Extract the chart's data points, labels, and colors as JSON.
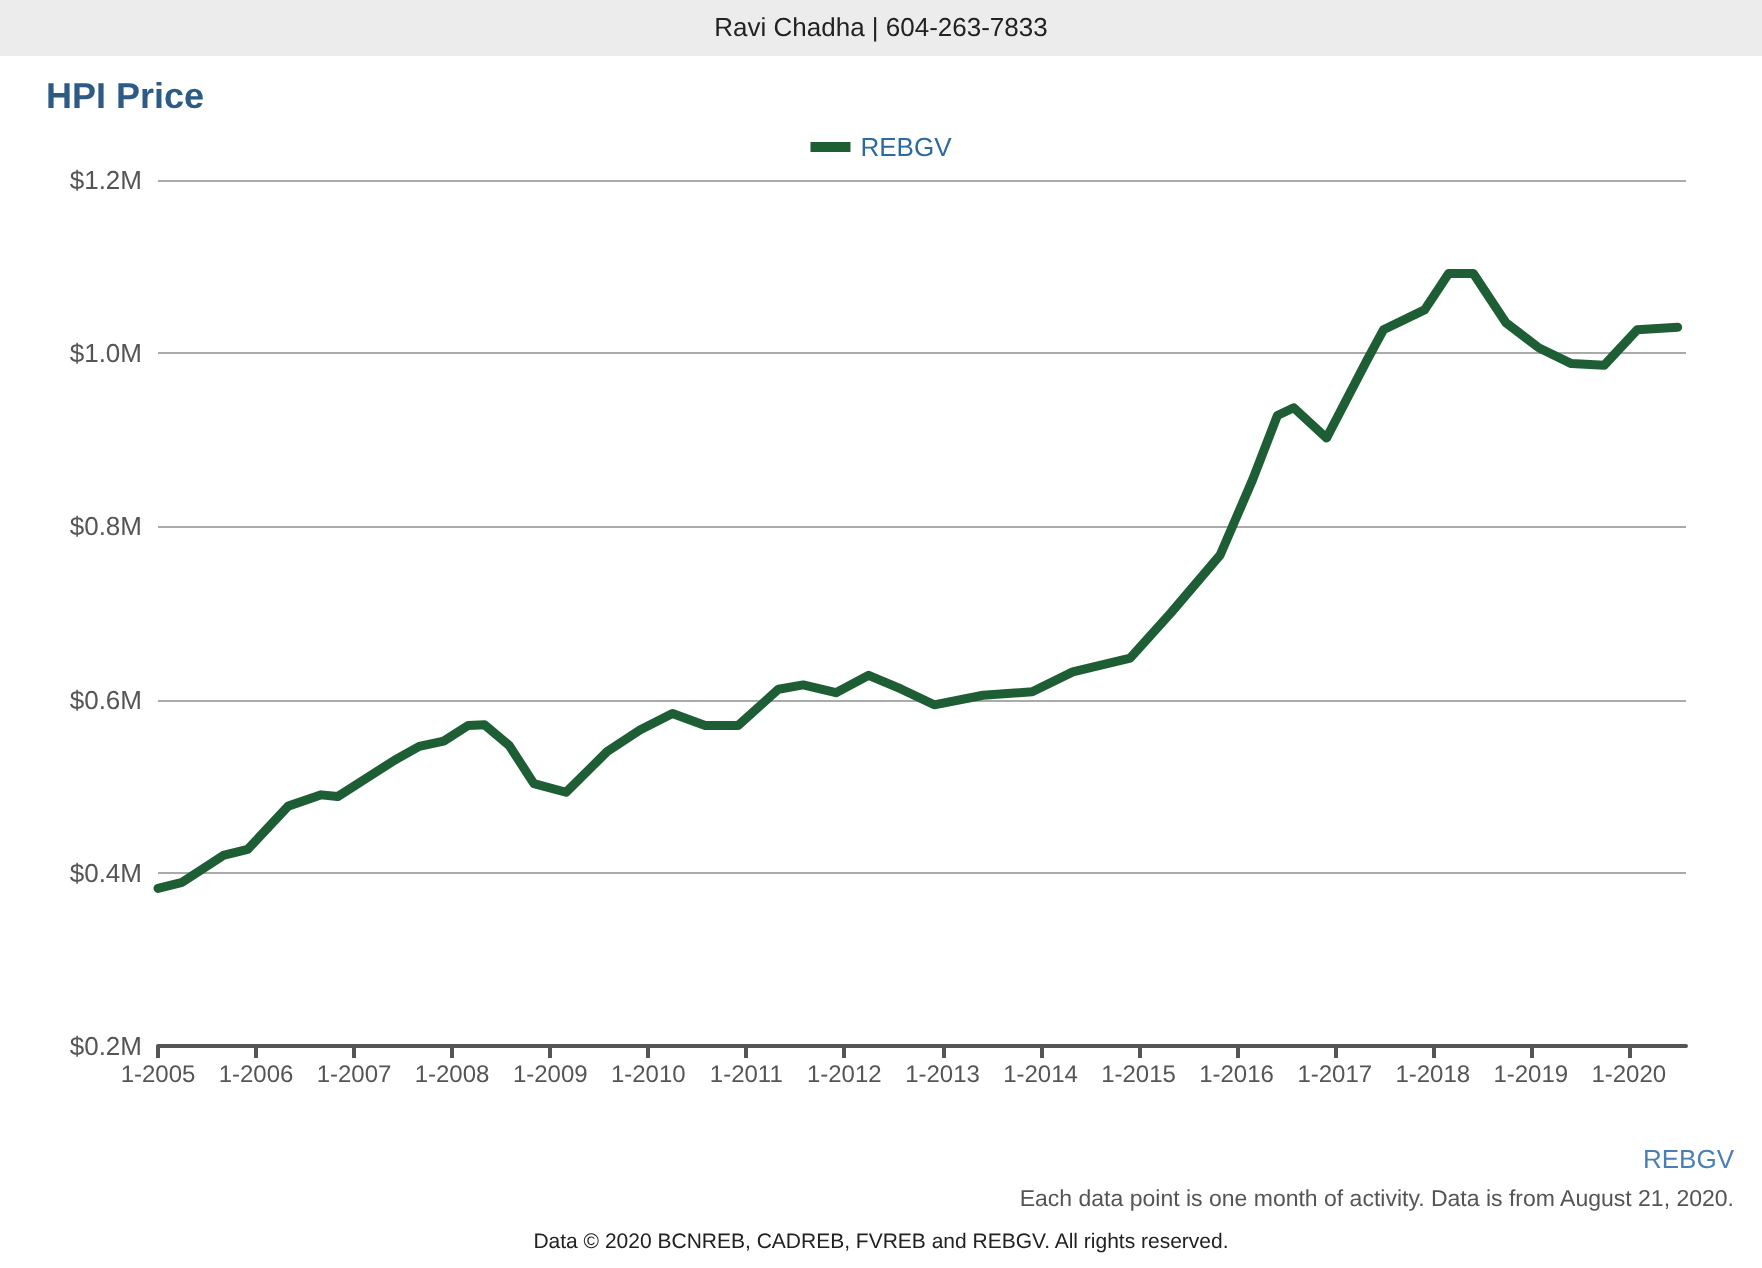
{
  "chart_data": {
    "type": "line",
    "title": "HPI Price",
    "annotations": [
      "Ravi Chadha | 604-263-7833",
      "REBGV",
      "Each data point is one month of activity. Data is from August 21, 2020.",
      "Data © 2020 BCNREB, CADREB, FVREB and REBGV. All rights reserved."
    ],
    "x": [
      "2005-01",
      "2005-04",
      "2005-09",
      "2005-12",
      "2006-05",
      "2006-09",
      "2006-11",
      "2007-06",
      "2007-09",
      "2007-12",
      "2008-03",
      "2008-05",
      "2008-08",
      "2008-11",
      "2009-03",
      "2009-08",
      "2009-12",
      "2010-04",
      "2010-08",
      "2010-12",
      "2011-05",
      "2011-08",
      "2011-12",
      "2012-04",
      "2012-08",
      "2012-12",
      "2013-06",
      "2013-12",
      "2014-05",
      "2014-12",
      "2015-05",
      "2015-11",
      "2016-03",
      "2016-06",
      "2016-08",
      "2016-12",
      "2017-05",
      "2017-07",
      "2017-12",
      "2018-03",
      "2018-06",
      "2018-10",
      "2019-02",
      "2019-06",
      "2019-10",
      "2020-02",
      "2020-07"
    ],
    "series": [
      {
        "name": "REBGV",
        "color": "#1e5e35",
        "values": [
          0.382,
          0.389,
          0.42,
          0.427,
          0.477,
          0.49,
          0.488,
          0.53,
          0.546,
          0.552,
          0.57,
          0.571,
          0.547,
          0.503,
          0.493,
          0.54,
          0.565,
          0.584,
          0.57,
          0.57,
          0.612,
          0.617,
          0.608,
          0.628,
          0.612,
          0.594,
          0.605,
          0.609,
          0.632,
          0.648,
          0.7,
          0.767,
          0.854,
          0.928,
          0.937,
          0.902,
          0.992,
          1.027,
          1.05,
          1.092,
          1.092,
          1.035,
          1.006,
          0.988,
          0.986,
          1.027,
          1.03
        ]
      }
    ],
    "xlim": [
      "2005-01",
      "2020-08"
    ],
    "xticks": [
      {
        "value": "2005-01",
        "label": "1-2005"
      },
      {
        "value": "2006-01",
        "label": "1-2006"
      },
      {
        "value": "2007-01",
        "label": "1-2007"
      },
      {
        "value": "2008-01",
        "label": "1-2008"
      },
      {
        "value": "2009-01",
        "label": "1-2009"
      },
      {
        "value": "2010-01",
        "label": "1-2010"
      },
      {
        "value": "2011-01",
        "label": "1-2011"
      },
      {
        "value": "2012-01",
        "label": "1-2012"
      },
      {
        "value": "2013-01",
        "label": "1-2013"
      },
      {
        "value": "2014-01",
        "label": "1-2014"
      },
      {
        "value": "2015-01",
        "label": "1-2015"
      },
      {
        "value": "2016-01",
        "label": "1-2016"
      },
      {
        "value": "2017-01",
        "label": "1-2017"
      },
      {
        "value": "2018-01",
        "label": "1-2018"
      },
      {
        "value": "2019-01",
        "label": "1-2019"
      },
      {
        "value": "2020-01",
        "label": "1-2020"
      }
    ],
    "ylim": [
      0.2,
      1.2
    ],
    "yticks": [
      {
        "value": 0.2,
        "label": "$0.2M"
      },
      {
        "value": 0.4,
        "label": "$0.4M"
      },
      {
        "value": 0.6,
        "label": "$0.6M"
      },
      {
        "value": 0.8,
        "label": "$0.8M"
      },
      {
        "value": 1.0,
        "label": "$1.0M"
      },
      {
        "value": 1.2,
        "label": "$1.2M"
      }
    ],
    "grid": "y",
    "legend": "top",
    "marker": "none",
    "line_style": "solid"
  }
}
